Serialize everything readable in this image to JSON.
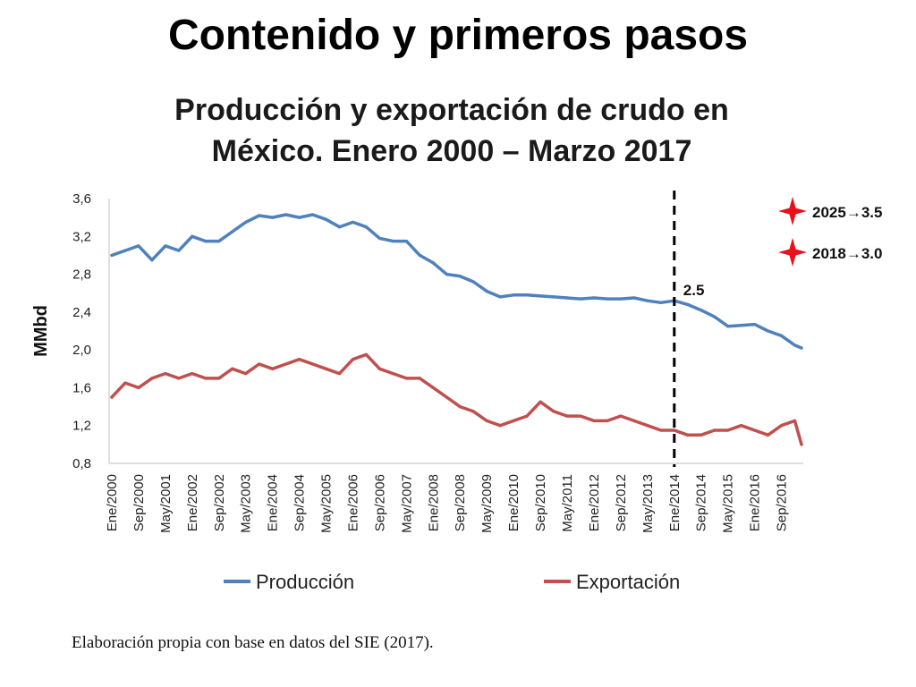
{
  "slide_title": "Contenido y primeros pasos",
  "chart_title": "Producción y exportación de crudo en México.  Enero 2000 – Marzo 2017",
  "footnote": "Elaboración propia con base en datos del SIE (2017).",
  "colors": {
    "produccion": "#4f81bd",
    "exportacion": "#c0504d",
    "marker": "#e8101a"
  },
  "chart_data": {
    "type": "line",
    "title": "Producción y exportación de crudo en México.  Enero 2000 – Marzo 2017",
    "ylabel": "MMbd",
    "xlabel": "",
    "ylim": [
      0.8,
      3.6
    ],
    "yticks": [
      "0,8",
      "1,2",
      "1,6",
      "2,0",
      "2,4",
      "2,8",
      "3,2",
      "3,6"
    ],
    "xticks": [
      "Ene/2000",
      "Sep/2000",
      "May/2001",
      "Ene/2002",
      "Sep/2002",
      "May/2003",
      "Ene/2004",
      "Sep/2004",
      "May/2005",
      "Ene/2006",
      "Sep/2006",
      "May/2007",
      "Ene/2008",
      "Sep/2008",
      "May/2009",
      "Ene/2010",
      "Sep/2010",
      "May/2011",
      "Ene/2012",
      "Sep/2012",
      "May/2013",
      "Ene/2014",
      "Sep/2014",
      "May/2015",
      "Ene/2016",
      "Sep/2016"
    ],
    "x_range": [
      "Ene/2000",
      "Mar/2017"
    ],
    "grid": false,
    "legend_position": "bottom",
    "series": [
      {
        "name": "Producción",
        "color": "#4f81bd",
        "x": [
          "Ene/2000",
          "May/2000",
          "Sep/2000",
          "Ene/2001",
          "May/2001",
          "Sep/2001",
          "Ene/2002",
          "May/2002",
          "Sep/2002",
          "Ene/2003",
          "May/2003",
          "Sep/2003",
          "Ene/2004",
          "May/2004",
          "Sep/2004",
          "Ene/2005",
          "May/2005",
          "Sep/2005",
          "Ene/2006",
          "May/2006",
          "Sep/2006",
          "Ene/2007",
          "May/2007",
          "Sep/2007",
          "Ene/2008",
          "May/2008",
          "Sep/2008",
          "Ene/2009",
          "May/2009",
          "Sep/2009",
          "Ene/2010",
          "May/2010",
          "Sep/2010",
          "Ene/2011",
          "May/2011",
          "Sep/2011",
          "Ene/2012",
          "May/2012",
          "Sep/2012",
          "Ene/2013",
          "May/2013",
          "Sep/2013",
          "Ene/2014",
          "May/2014",
          "Sep/2014",
          "Ene/2015",
          "May/2015",
          "Sep/2015",
          "Ene/2016",
          "May/2016",
          "Sep/2016",
          "Ene/2017",
          "Mar/2017"
        ],
        "values": [
          3.0,
          3.05,
          3.1,
          2.95,
          3.1,
          3.05,
          3.2,
          3.15,
          3.15,
          3.25,
          3.35,
          3.42,
          3.4,
          3.43,
          3.4,
          3.43,
          3.38,
          3.3,
          3.35,
          3.3,
          3.18,
          3.15,
          3.15,
          3.0,
          2.92,
          2.8,
          2.78,
          2.72,
          2.62,
          2.56,
          2.58,
          2.58,
          2.57,
          2.56,
          2.55,
          2.54,
          2.55,
          2.54,
          2.54,
          2.55,
          2.52,
          2.5,
          2.52,
          2.48,
          2.42,
          2.35,
          2.25,
          2.26,
          2.27,
          2.2,
          2.15,
          2.05,
          2.02
        ]
      },
      {
        "name": "Exportación",
        "color": "#c0504d",
        "x": [
          "Ene/2000",
          "May/2000",
          "Sep/2000",
          "Ene/2001",
          "May/2001",
          "Sep/2001",
          "Ene/2002",
          "May/2002",
          "Sep/2002",
          "Ene/2003",
          "May/2003",
          "Sep/2003",
          "Ene/2004",
          "May/2004",
          "Sep/2004",
          "Ene/2005",
          "May/2005",
          "Sep/2005",
          "Ene/2006",
          "May/2006",
          "Sep/2006",
          "Ene/2007",
          "May/2007",
          "Sep/2007",
          "Ene/2008",
          "May/2008",
          "Sep/2008",
          "Ene/2009",
          "May/2009",
          "Sep/2009",
          "Ene/2010",
          "May/2010",
          "Sep/2010",
          "Ene/2011",
          "May/2011",
          "Sep/2011",
          "Ene/2012",
          "May/2012",
          "Sep/2012",
          "Ene/2013",
          "May/2013",
          "Sep/2013",
          "Ene/2014",
          "May/2014",
          "Sep/2014",
          "Ene/2015",
          "May/2015",
          "Sep/2015",
          "Ene/2016",
          "May/2016",
          "Sep/2016",
          "Ene/2017",
          "Mar/2017"
        ],
        "values": [
          1.5,
          1.65,
          1.6,
          1.7,
          1.75,
          1.7,
          1.75,
          1.7,
          1.7,
          1.8,
          1.75,
          1.85,
          1.8,
          1.85,
          1.9,
          1.85,
          1.8,
          1.75,
          1.9,
          1.95,
          1.8,
          1.75,
          1.7,
          1.7,
          1.6,
          1.5,
          1.4,
          1.35,
          1.25,
          1.2,
          1.25,
          1.3,
          1.45,
          1.35,
          1.3,
          1.3,
          1.25,
          1.25,
          1.3,
          1.25,
          1.2,
          1.15,
          1.15,
          1.1,
          1.1,
          1.15,
          1.15,
          1.2,
          1.15,
          1.1,
          1.2,
          1.25,
          1.0
        ]
      }
    ],
    "reference_line": {
      "x": "Ene/2014",
      "label": "2.5"
    },
    "annotations": [
      {
        "label": "2025→3.5"
      },
      {
        "label": "2018→3.0"
      }
    ]
  }
}
